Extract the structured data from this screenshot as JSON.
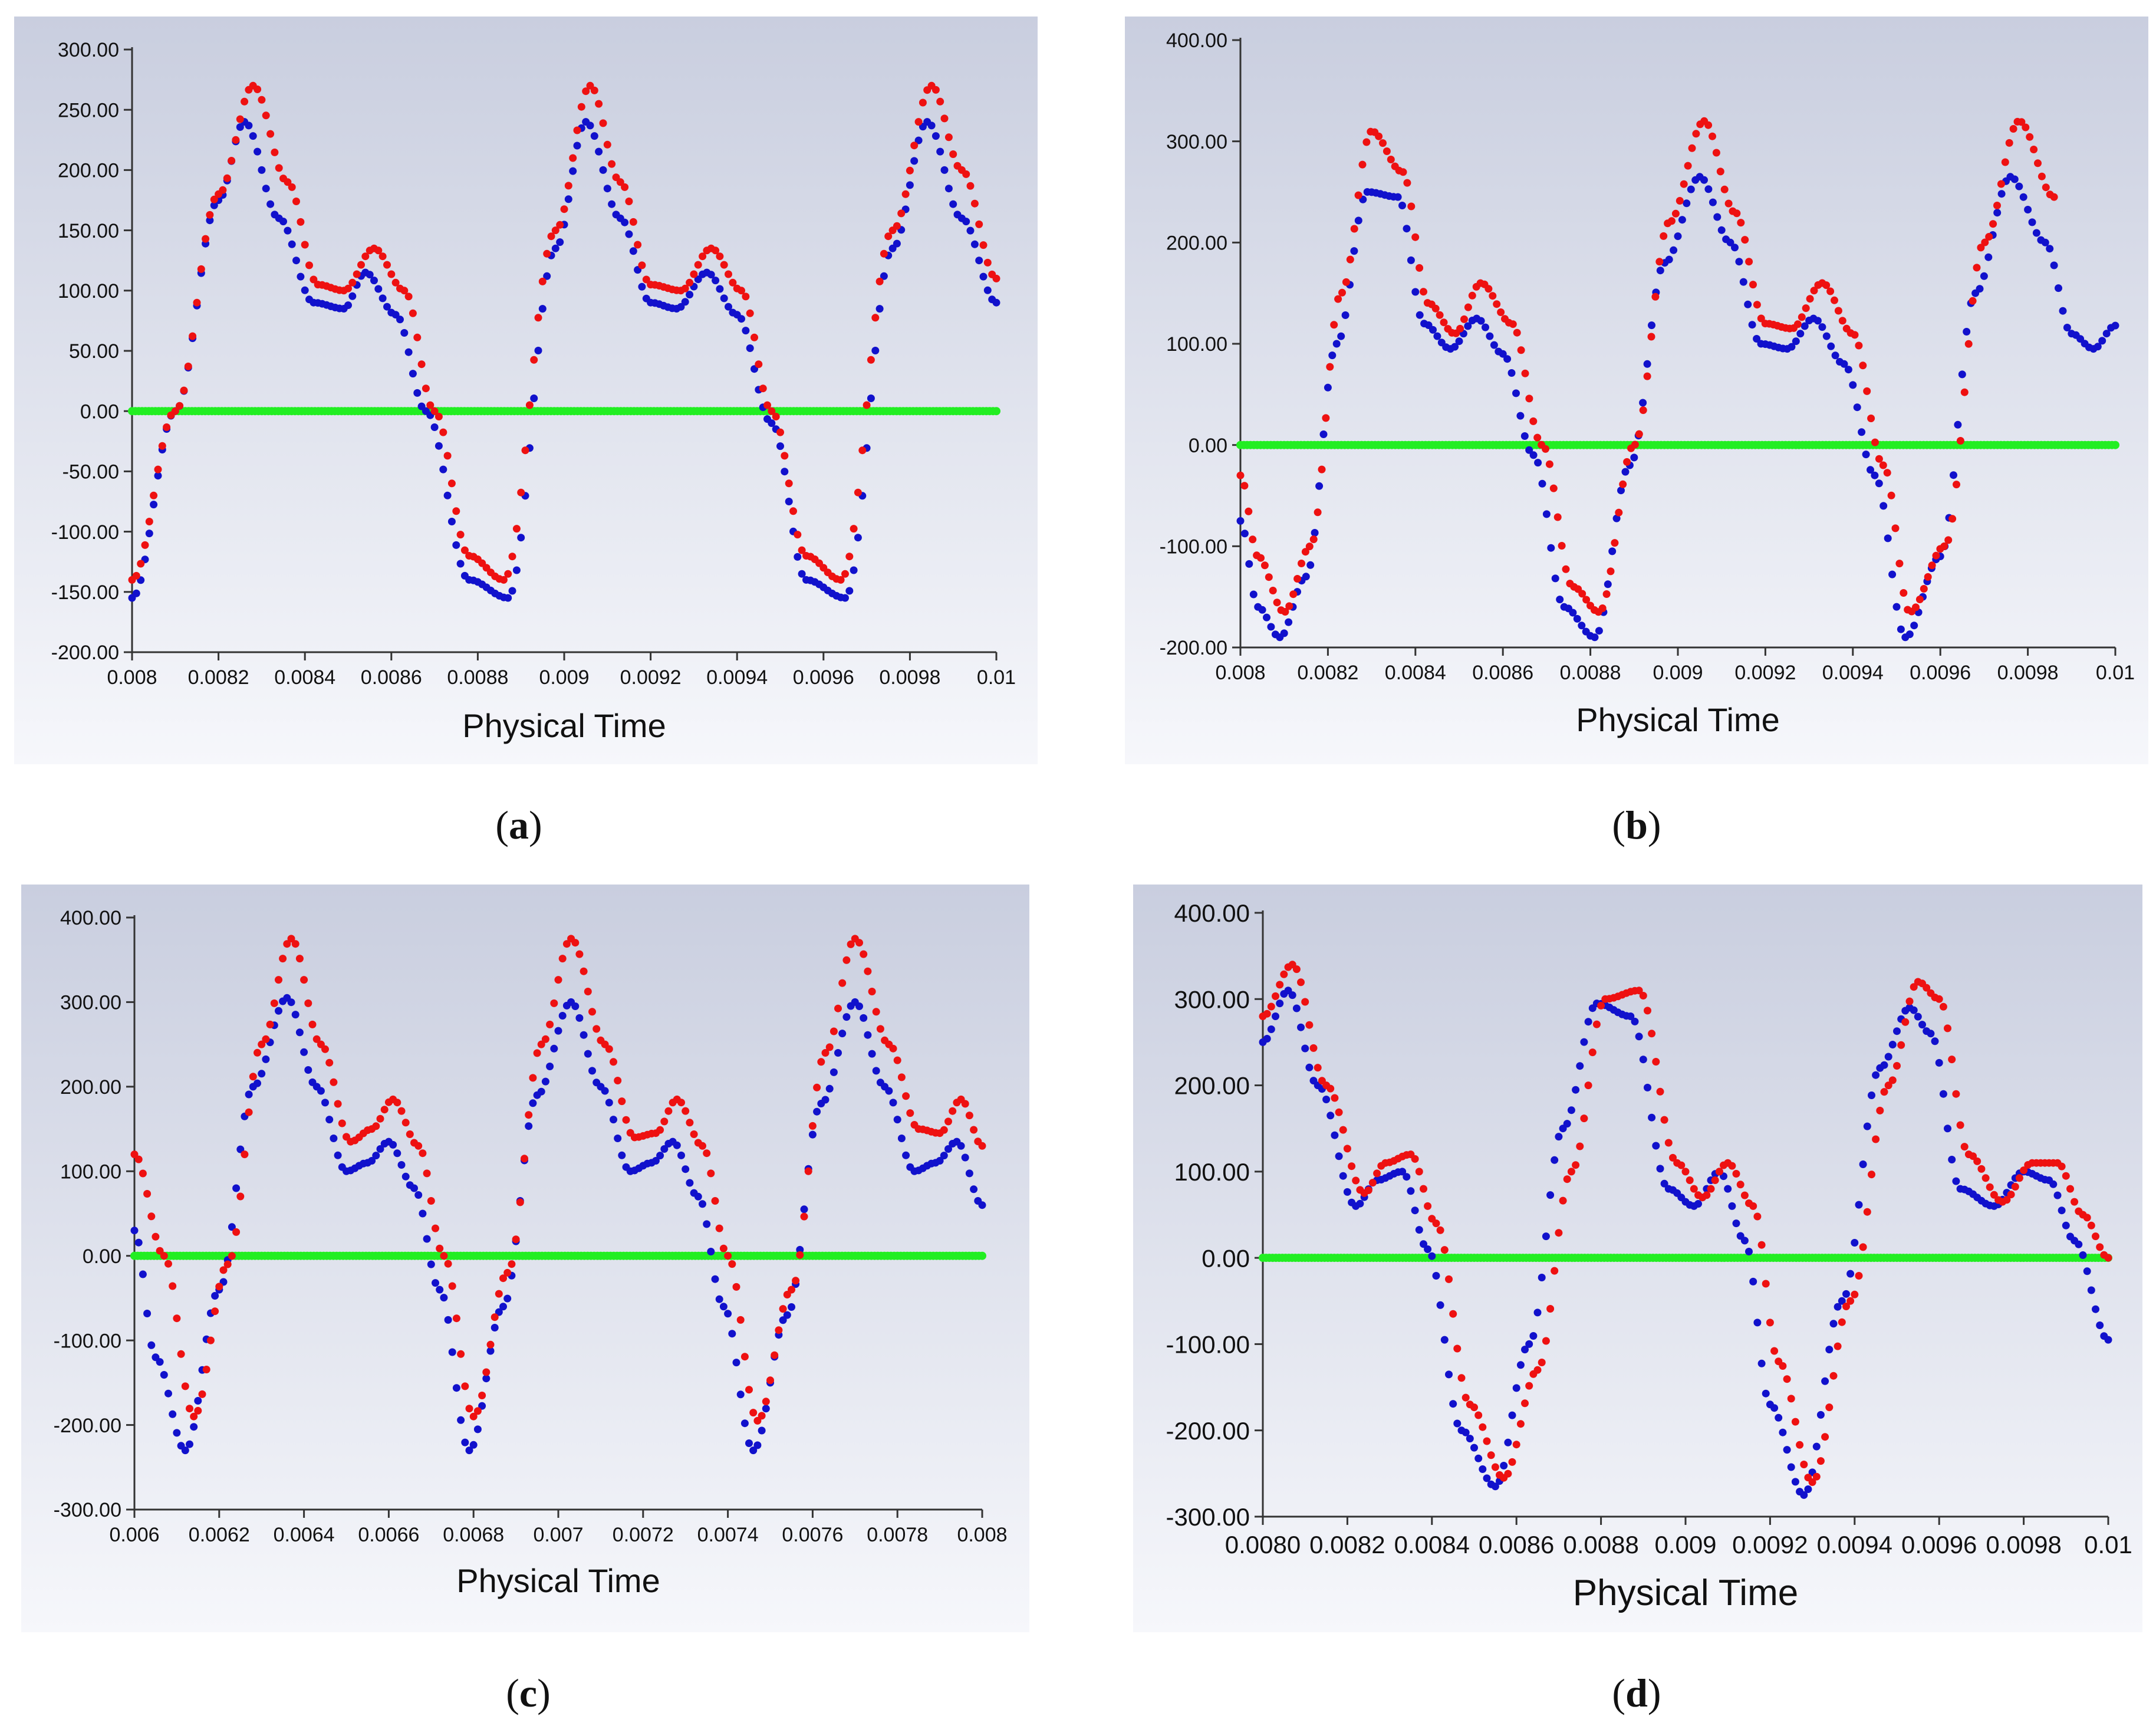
{
  "colors": {
    "series_red": "#ee1111",
    "series_blue": "#1111cc",
    "series_green": "#22ee22",
    "bg_top": "#c9cedf",
    "bg_bottom": "#f6f7fb"
  },
  "chart_data": [
    {
      "label": "a",
      "type": "scatter",
      "xlabel": "Physical Time",
      "ylabel": "",
      "xlim": [
        0.008,
        0.01
      ],
      "ylim": [
        -200,
        300
      ],
      "xticks": [
        0.008,
        0.0082,
        0.0084,
        0.0086,
        0.0088,
        0.009,
        0.0092,
        0.0094,
        0.0096,
        0.0098,
        0.01
      ],
      "xtick_labels": [
        "0.008",
        "0.0082",
        "0.0084",
        "0.0086",
        "0.0088",
        "0.009",
        "0.0092",
        "0.0094",
        "0.0096",
        "0.0098",
        "0.01"
      ],
      "yticks": [
        300,
        250,
        200,
        150,
        100,
        50,
        0,
        -50,
        -100,
        -150,
        -200
      ],
      "ytick_labels": [
        "300.00",
        "250.00",
        "200.00",
        "150.00",
        "100.00",
        "50.00",
        "0.00",
        "-50.00",
        "-100.00",
        "-150.00",
        "-200.00"
      ],
      "series": [
        {
          "name": "red",
          "x": [
            0.008,
            0.0081,
            0.0082,
            0.00828,
            0.00836,
            0.00843,
            0.00849,
            0.00856,
            0.00863,
            0.0087,
            0.00878,
            0.00886,
            0.00898,
            0.00906,
            0.00913,
            0.0092,
            0.00927,
            0.00934,
            0.00941,
            0.00948,
            0.00956,
            0.00964,
            0.00976,
            0.00985,
            0.00992,
            0.01
          ],
          "values": [
            -140,
            0,
            180,
            270,
            190,
            105,
            100,
            135,
            100,
            0,
            -120,
            -140,
            150,
            270,
            190,
            105,
            100,
            135,
            100,
            0,
            -120,
            -140,
            150,
            270,
            200,
            110
          ]
        },
        {
          "name": "blue",
          "x": [
            0.008,
            0.0081,
            0.0082,
            0.00826,
            0.00834,
            0.00842,
            0.00849,
            0.00854,
            0.00861,
            0.00868,
            0.00878,
            0.00887,
            0.00898,
            0.00905,
            0.00913,
            0.0092,
            0.00926,
            0.00933,
            0.0094,
            0.00948,
            0.00956,
            0.00965,
            0.00976,
            0.00984,
            0.00992,
            0.01
          ],
          "values": [
            -155,
            0,
            175,
            240,
            160,
            90,
            85,
            115,
            80,
            0,
            -140,
            -155,
            135,
            240,
            160,
            90,
            85,
            115,
            80,
            -10,
            -140,
            -155,
            135,
            240,
            160,
            90
          ]
        },
        {
          "name": "green",
          "x": [
            0.008,
            0.01
          ],
          "values": [
            0,
            0
          ]
        }
      ]
    },
    {
      "label": "b",
      "type": "scatter",
      "xlabel": "Physical Time",
      "ylabel": "",
      "xlim": [
        0.008,
        0.01
      ],
      "ylim": [
        -200,
        400
      ],
      "xticks": [
        0.008,
        0.0082,
        0.0084,
        0.0086,
        0.0088,
        0.009,
        0.0092,
        0.0094,
        0.0096,
        0.0098,
        0.01
      ],
      "xtick_labels": [
        "0.008",
        "0.0082",
        "0.0084",
        "0.0086",
        "0.0088",
        "0.009",
        "0.0092",
        "0.0094",
        "0.0096",
        "0.0098",
        "0.01"
      ],
      "yticks": [
        400,
        300,
        200,
        100,
        0,
        -100,
        -200
      ],
      "ytick_labels": [
        "400.00",
        "300.00",
        "200.00",
        "100.00",
        "0.00",
        "-100.00",
        "-200.00"
      ],
      "series": [
        {
          "name": "red",
          "x": [
            0.008,
            0.00804,
            0.0081,
            0.00816,
            0.00823,
            0.0083,
            0.00837,
            0.00843,
            0.00849,
            0.00855,
            0.00862,
            0.00869,
            0.00876,
            0.00882,
            0.0089,
            0.00898,
            0.00906,
            0.00913,
            0.0092,
            0.00926,
            0.00933,
            0.0094,
            0.00947,
            0.00953,
            0.00961,
            0.0097,
            0.00978,
            0.00986
          ],
          "values": [
            -30,
            -110,
            -165,
            -100,
            150,
            310,
            270,
            140,
            110,
            160,
            120,
            0,
            -140,
            -165,
            0,
            220,
            320,
            230,
            120,
            115,
            160,
            110,
            -20,
            -165,
            -100,
            200,
            320,
            245
          ]
        },
        {
          "name": "blue",
          "x": [
            0.008,
            0.00804,
            0.00809,
            0.00815,
            0.00822,
            0.00829,
            0.00836,
            0.00842,
            0.00848,
            0.00854,
            0.0086,
            0.00867,
            0.00874,
            0.00881,
            0.00889,
            0.00897,
            0.00905,
            0.00912,
            0.00919,
            0.00925,
            0.00931,
            0.00938,
            0.00945,
            0.00952,
            0.0096,
            0.00968,
            0.00976,
            0.00984,
            0.0099,
            0.00995,
            0.01
          ],
          "values": [
            -75,
            -160,
            -190,
            -130,
            100,
            250,
            245,
            120,
            95,
            125,
            90,
            -10,
            -160,
            -190,
            -20,
            180,
            265,
            200,
            100,
            95,
            125,
            80,
            -30,
            -190,
            -110,
            150,
            265,
            200,
            110,
            95,
            118
          ]
        },
        {
          "name": "green",
          "x": [
            0.008,
            0.01
          ],
          "values": [
            0,
            0
          ]
        }
      ]
    },
    {
      "label": "c",
      "type": "scatter",
      "xlabel": "Physical Time",
      "ylabel": "",
      "xlim": [
        0.006,
        0.008
      ],
      "ylim": [
        -300,
        400
      ],
      "xticks": [
        0.006,
        0.0062,
        0.0064,
        0.0066,
        0.0068,
        0.007,
        0.0072,
        0.0074,
        0.0076,
        0.0078,
        0.008
      ],
      "xtick_labels": [
        "0.006",
        "0.0062",
        "0.0064",
        "0.0066",
        "0.0068",
        "0.007",
        "0.0072",
        "0.0074",
        "0.0076",
        "0.0078",
        "0.008"
      ],
      "yticks": [
        400,
        300,
        200,
        100,
        0,
        -100,
        -200,
        -300
      ],
      "ytick_labels": [
        "400.00",
        "300.00",
        "200.00",
        "100.00",
        "0.00",
        "-100.00",
        "-200.00",
        "-300.00"
      ],
      "series": [
        {
          "name": "red",
          "x": [
            0.006,
            0.00607,
            0.00614,
            0.00622,
            0.0063,
            0.00637,
            0.00644,
            0.00651,
            0.00656,
            0.00661,
            0.00667,
            0.00673,
            0.0068,
            0.00688,
            0.00696,
            0.00703,
            0.00711,
            0.00718,
            0.00723,
            0.00728,
            0.00734,
            0.0074,
            0.00747,
            0.00755,
            0.00763,
            0.0077,
            0.00778,
            0.00785,
            0.0079,
            0.00795,
            0.008
          ],
          "values": [
            120,
            0,
            -190,
            -10,
            250,
            375,
            250,
            135,
            150,
            185,
            130,
            0,
            -190,
            -20,
            250,
            375,
            250,
            140,
            145,
            185,
            130,
            0,
            -195,
            -40,
            240,
            375,
            250,
            150,
            145,
            185,
            130
          ]
        },
        {
          "name": "blue",
          "x": [
            0.006,
            0.00605,
            0.00612,
            0.0062,
            0.00628,
            0.00636,
            0.00643,
            0.0065,
            0.00655,
            0.0066,
            0.00666,
            0.00672,
            0.00679,
            0.00687,
            0.00695,
            0.00703,
            0.0071,
            0.00717,
            0.00722,
            0.00727,
            0.00733,
            0.00739,
            0.00746,
            0.00754,
            0.00762,
            0.0077,
            0.00777,
            0.00784,
            0.00789,
            0.00794,
            0.008
          ],
          "values": [
            30,
            -120,
            -230,
            -40,
            200,
            305,
            200,
            100,
            110,
            135,
            80,
            -40,
            -230,
            -60,
            190,
            300,
            200,
            100,
            110,
            135,
            70,
            -60,
            -230,
            -70,
            180,
            300,
            200,
            100,
            110,
            135,
            60
          ]
        },
        {
          "name": "green",
          "x": [
            0.006,
            0.008
          ],
          "values": [
            0,
            0
          ]
        }
      ]
    },
    {
      "label": "d",
      "type": "scatter",
      "xlabel": "Physical Time",
      "ylabel": "",
      "xlim": [
        0.008,
        0.01
      ],
      "ylim": [
        -300,
        400
      ],
      "xticks": [
        0.008,
        0.0082,
        0.0084,
        0.0086,
        0.0088,
        0.009,
        0.0092,
        0.0094,
        0.0096,
        0.0098,
        0.01
      ],
      "xtick_labels": [
        "0.0080",
        "0.0082",
        "0.0084",
        "0.0086",
        "0.0088",
        "0.009",
        "0.0092",
        "0.0094",
        "0.0096",
        "0.0098",
        "0.01"
      ],
      "yticks": [
        400,
        300,
        200,
        100,
        0,
        -100,
        -200,
        -300
      ],
      "ytick_labels": [
        "400.00",
        "300.00",
        "200.00",
        "100.00",
        "0.00",
        "-100.00",
        "-200.00",
        "-300.00"
      ],
      "series": [
        {
          "name": "red",
          "x": [
            0.008,
            0.00807,
            0.00815,
            0.00824,
            0.00829,
            0.00835,
            0.00841,
            0.00849,
            0.00857,
            0.00865,
            0.00873,
            0.00881,
            0.00889,
            0.00898,
            0.00904,
            0.0091,
            0.00916,
            0.00922,
            0.0093,
            0.00939,
            0.00948,
            0.00955,
            0.0096,
            0.00967,
            0.00975,
            0.00982,
            0.00988,
            0.00994,
            0.01
          ],
          "values": [
            280,
            340,
            200,
            75,
            110,
            120,
            40,
            -170,
            -255,
            -130,
            100,
            300,
            310,
            110,
            70,
            110,
            60,
            -120,
            -260,
            -50,
            200,
            320,
            300,
            120,
            65,
            110,
            110,
            50,
            0
          ]
        },
        {
          "name": "blue",
          "x": [
            0.008,
            0.00806,
            0.00813,
            0.00822,
            0.00827,
            0.00833,
            0.00839,
            0.00847,
            0.00855,
            0.00863,
            0.00871,
            0.00879,
            0.00887,
            0.00896,
            0.00902,
            0.00908,
            0.00914,
            0.0092,
            0.00928,
            0.00937,
            0.00946,
            0.00953,
            0.00958,
            0.00965,
            0.00973,
            0.0098,
            0.00986,
            0.00992,
            0.01
          ],
          "values": [
            250,
            310,
            200,
            60,
            90,
            100,
            10,
            -200,
            -265,
            -100,
            150,
            295,
            280,
            80,
            60,
            100,
            20,
            -170,
            -275,
            -50,
            220,
            290,
            260,
            80,
            60,
            100,
            90,
            20,
            -95
          ]
        },
        {
          "name": "green",
          "x": [
            0.008,
            0.01
          ],
          "values": [
            0,
            0
          ]
        }
      ]
    }
  ]
}
